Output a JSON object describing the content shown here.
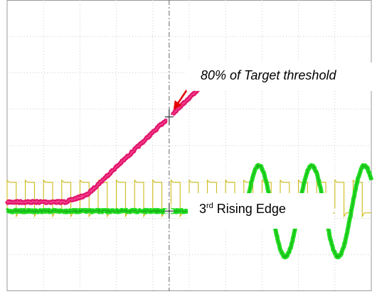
{
  "chart_data": {
    "type": "line",
    "title": "",
    "xlabel": "",
    "ylabel": "",
    "grid": true,
    "grid_divisions": {
      "x": 10,
      "y": 8
    },
    "xlim": [
      0,
      10
    ],
    "ylim": [
      -4,
      4
    ],
    "cursor_x": 4.45,
    "series": [
      {
        "color": "#e0156b",
        "points": [
          [
            0,
            -1.55
          ],
          [
            1.6,
            -1.55
          ],
          [
            2.2,
            -1.35
          ],
          [
            5.2,
            1.5
          ],
          [
            5.45,
            1.8
          ],
          [
            10,
            1.8
          ]
        ]
      },
      {
        "color": "#22dd22",
        "start_level": -1.8,
        "sine_start": 6.55,
        "amplitude": 1.25,
        "period": 1.45
      },
      {
        "color": "#c8b400",
        "high": -0.95,
        "low": -1.85,
        "period": 0.5,
        "duty": 0.5
      }
    ],
    "annotations": [
      {
        "text": "80% of Target threshold",
        "x": 4.45,
        "y": 1.1
      },
      {
        "text_main": "3",
        "text_sup": "rd",
        "text_rest": " Rising Edge",
        "x": 6.5,
        "y": -1.8
      }
    ],
    "arrow_color": "#e60000"
  }
}
